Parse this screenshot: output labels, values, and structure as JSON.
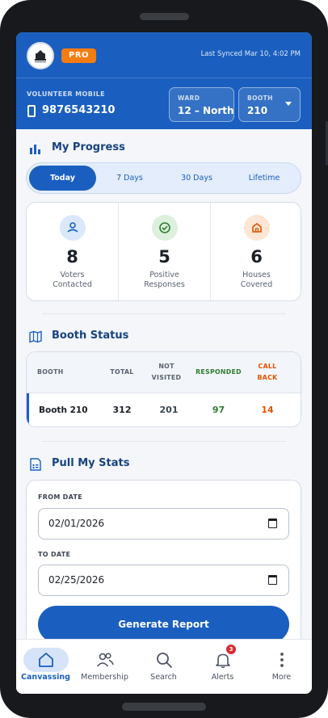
{
  "header": {
    "pro_badge": "PRO",
    "last_synced": "Last Synced Mar 10, 4:02 PM",
    "volunteer_label": "VOLUNTEER MOBILE",
    "volunteer_mobile": "9876543210",
    "ward": {
      "label": "WARD",
      "value": "12 – North"
    },
    "booth": {
      "label": "BOOTH",
      "value": "210"
    }
  },
  "progress": {
    "title": "My Progress",
    "tabs": [
      {
        "label": "Today",
        "active": true
      },
      {
        "label": "7 Days",
        "active": false
      },
      {
        "label": "30 Days",
        "active": false
      },
      {
        "label": "Lifetime",
        "active": false
      }
    ],
    "stats": [
      {
        "value": "8",
        "label_line1": "Voters",
        "label_line2": "Contacted",
        "icon": "person-icon",
        "color": "#1a5fbf"
      },
      {
        "value": "5",
        "label_line1": "Positive",
        "label_line2": "Responses",
        "icon": "check-circle-icon",
        "color": "#2e7d32"
      },
      {
        "value": "6",
        "label_line1": "Houses",
        "label_line2": "Covered",
        "icon": "home-icon",
        "color": "#e65100"
      }
    ]
  },
  "booth_status": {
    "title": "Booth Status",
    "columns": [
      "BOOTH",
      "TOTAL",
      "NOT VISITED",
      "RESPONDED",
      "CALL BACK"
    ],
    "column_lines": {
      "not_visited": [
        "NOT",
        "VISITED"
      ],
      "call_back": [
        "CALL",
        "BACK"
      ]
    },
    "rows": [
      {
        "booth": "Booth 210",
        "total": "312",
        "not_visited": "201",
        "responded": "97",
        "call_back": "14"
      }
    ],
    "colors": {
      "responded": "#2e7d32",
      "call_back": "#e65100",
      "not_visited": "#37474f"
    }
  },
  "stats_pull": {
    "title": "Pull My Stats",
    "from_label": "FROM DATE",
    "from_value": "02/01/2026",
    "to_label": "TO DATE",
    "to_value": "02/25/2026",
    "generate_label": "Generate Report"
  },
  "nav": [
    {
      "label": "Canvassing",
      "icon": "home-icon",
      "active": true
    },
    {
      "label": "Membership",
      "icon": "people-icon",
      "active": false
    },
    {
      "label": "Search",
      "icon": "search-icon",
      "active": false
    },
    {
      "label": "Alerts",
      "icon": "bell-icon",
      "active": false,
      "badge": "3"
    },
    {
      "label": "More",
      "icon": "more-vertical-icon",
      "active": false
    }
  ],
  "colors": {
    "primary": "#1a5fbf",
    "accent": "#f57c10",
    "alert": "#d32f2f"
  }
}
